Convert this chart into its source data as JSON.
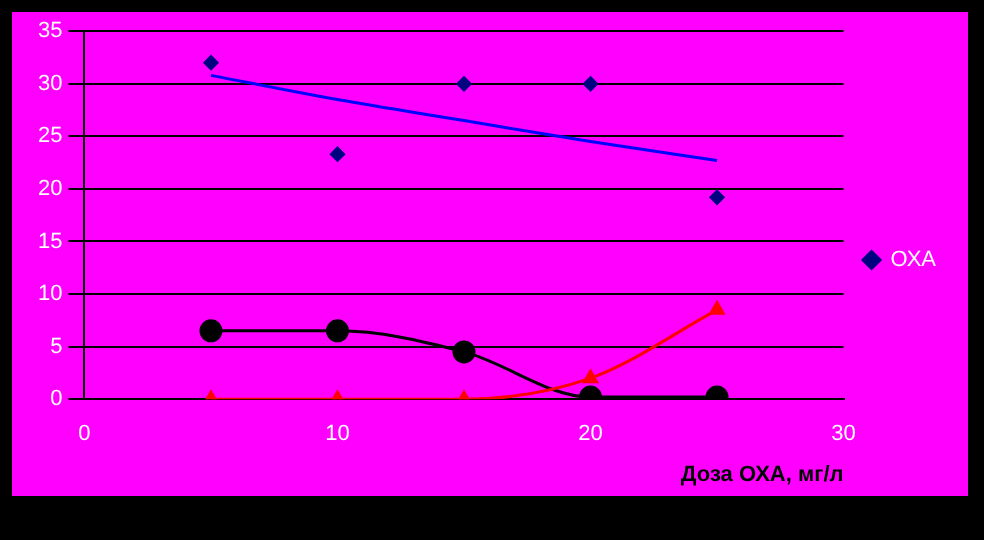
{
  "chart_data": {
    "type": "scatter",
    "xlabel": "Доза ОХА, мг/л",
    "x": [
      5,
      10,
      15,
      20,
      25
    ],
    "xlim": [
      0,
      30
    ],
    "xticks": [
      0,
      10,
      20,
      30
    ],
    "ylim": [
      0,
      35
    ],
    "yticks": [
      0,
      5,
      10,
      15,
      20,
      25,
      30,
      35
    ],
    "grid": "y",
    "legend": "right",
    "series": [
      {
        "name": "ОХА",
        "marker": "diamond",
        "color": "#000080",
        "values": [
          32,
          23.3,
          30,
          30,
          19.2
        ]
      },
      {
        "type": "line",
        "marker": "none",
        "color": "#0000ff",
        "values": [
          30.8,
          28.5,
          26.5,
          24.5,
          22.7
        ]
      },
      {
        "type": "line",
        "marker": "triangle",
        "color": "#ff0000",
        "values": [
          0,
          0,
          0,
          2,
          8.5
        ]
      },
      {
        "type": "line",
        "marker": "circle",
        "color": "#000000",
        "values": [
          6.5,
          6.5,
          4.5,
          0.2,
          0.2
        ]
      }
    ]
  }
}
